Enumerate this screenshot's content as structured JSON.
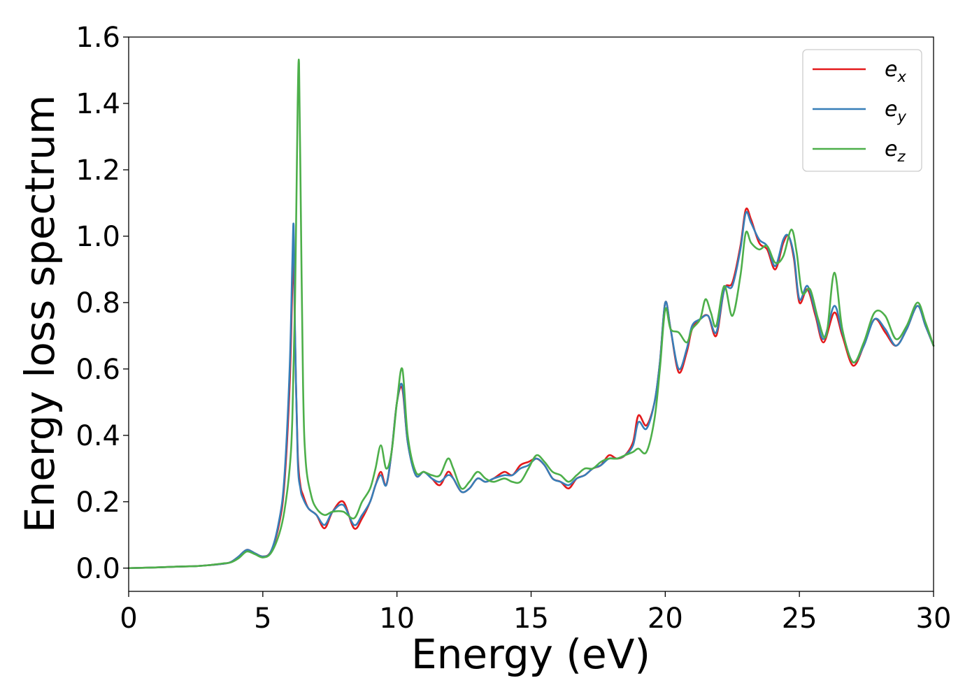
{
  "chart_data": {
    "type": "line",
    "xlabel": "Energy (eV)",
    "ylabel": "Energy loss spectrum",
    "xlim": [
      0,
      30
    ],
    "ylim": [
      -0.07,
      1.6
    ],
    "xticks": [
      0,
      5,
      10,
      15,
      20,
      25,
      30
    ],
    "yticks": [
      0.0,
      0.2,
      0.4,
      0.6,
      0.8,
      1.0,
      1.2,
      1.4,
      1.6
    ],
    "xtick_labels": [
      "0",
      "5",
      "10",
      "15",
      "20",
      "25",
      "30"
    ],
    "ytick_labels": [
      "0.0",
      "0.2",
      "0.4",
      "0.6",
      "0.8",
      "1.0",
      "1.2",
      "1.4",
      "1.6"
    ],
    "grid": false,
    "legend_position": "top-right",
    "series": [
      {
        "name": "e_x",
        "legend_base": "e",
        "legend_sub": "x",
        "color": "#e41a1c",
        "x": [
          0,
          1,
          2,
          2.5,
          3,
          3.5,
          3.8,
          4.1,
          4.4,
          4.7,
          5.0,
          5.3,
          5.6,
          5.8,
          6.0,
          6.1,
          6.15,
          6.2,
          6.3,
          6.4,
          6.5,
          6.7,
          7.0,
          7.3,
          7.6,
          8.0,
          8.4,
          8.7,
          9.0,
          9.2,
          9.4,
          9.6,
          9.8,
          10.0,
          10.2,
          10.4,
          10.7,
          11.0,
          11.3,
          11.6,
          11.9,
          12.1,
          12.4,
          12.7,
          13.0,
          13.3,
          13.6,
          14.0,
          14.3,
          14.6,
          14.9,
          15.2,
          15.5,
          15.8,
          16.1,
          16.4,
          16.7,
          17.0,
          17.3,
          17.6,
          17.9,
          18.2,
          18.5,
          18.8,
          19.0,
          19.3,
          19.6,
          19.8,
          20.0,
          20.2,
          20.5,
          20.8,
          21.0,
          21.3,
          21.6,
          21.9,
          22.2,
          22.5,
          22.8,
          23.0,
          23.2,
          23.5,
          23.8,
          24.1,
          24.4,
          24.6,
          24.8,
          25.0,
          25.3,
          25.6,
          25.9,
          26.3,
          26.6,
          27.0,
          27.4,
          27.8,
          28.2,
          28.6,
          29.0,
          29.4,
          29.7,
          30.0
        ],
        "y": [
          0.0,
          0.002,
          0.005,
          0.006,
          0.009,
          0.013,
          0.018,
          0.035,
          0.055,
          0.045,
          0.035,
          0.05,
          0.13,
          0.25,
          0.55,
          0.85,
          0.95,
          0.7,
          0.35,
          0.25,
          0.22,
          0.18,
          0.16,
          0.12,
          0.17,
          0.2,
          0.12,
          0.15,
          0.2,
          0.25,
          0.29,
          0.25,
          0.35,
          0.5,
          0.54,
          0.38,
          0.28,
          0.29,
          0.27,
          0.25,
          0.29,
          0.27,
          0.23,
          0.24,
          0.27,
          0.26,
          0.27,
          0.29,
          0.28,
          0.31,
          0.32,
          0.33,
          0.31,
          0.27,
          0.26,
          0.24,
          0.27,
          0.28,
          0.3,
          0.31,
          0.34,
          0.33,
          0.34,
          0.38,
          0.46,
          0.43,
          0.5,
          0.62,
          0.8,
          0.72,
          0.59,
          0.65,
          0.72,
          0.75,
          0.76,
          0.7,
          0.84,
          0.86,
          0.97,
          1.08,
          1.05,
          0.98,
          0.96,
          0.9,
          0.98,
          1.0,
          0.93,
          0.8,
          0.84,
          0.76,
          0.68,
          0.77,
          0.7,
          0.61,
          0.67,
          0.75,
          0.71,
          0.67,
          0.72,
          0.79,
          0.73,
          0.67
        ]
      },
      {
        "name": "e_y",
        "legend_base": "e",
        "legend_sub": "y",
        "color": "#377eb8",
        "x": [
          0,
          1,
          2,
          2.5,
          3,
          3.5,
          3.8,
          4.1,
          4.4,
          4.7,
          5.0,
          5.3,
          5.6,
          5.8,
          6.0,
          6.1,
          6.15,
          6.2,
          6.3,
          6.4,
          6.5,
          6.7,
          7.0,
          7.3,
          7.6,
          8.0,
          8.4,
          8.7,
          9.0,
          9.2,
          9.4,
          9.6,
          9.8,
          10.0,
          10.2,
          10.4,
          10.7,
          11.0,
          11.3,
          11.6,
          11.9,
          12.1,
          12.4,
          12.7,
          13.0,
          13.3,
          13.6,
          14.0,
          14.3,
          14.6,
          14.9,
          15.2,
          15.5,
          15.8,
          16.1,
          16.4,
          16.7,
          17.0,
          17.3,
          17.6,
          17.9,
          18.2,
          18.5,
          18.8,
          19.0,
          19.3,
          19.6,
          19.8,
          20.0,
          20.2,
          20.5,
          20.8,
          21.0,
          21.3,
          21.6,
          21.9,
          22.2,
          22.5,
          22.8,
          23.0,
          23.2,
          23.5,
          23.8,
          24.1,
          24.4,
          24.6,
          24.8,
          25.0,
          25.3,
          25.6,
          25.9,
          26.3,
          26.6,
          27.0,
          27.4,
          27.8,
          28.2,
          28.6,
          29.0,
          29.4,
          29.7,
          30.0
        ],
        "y": [
          0.0,
          0.002,
          0.005,
          0.006,
          0.009,
          0.013,
          0.018,
          0.035,
          0.055,
          0.045,
          0.035,
          0.05,
          0.14,
          0.27,
          0.6,
          0.92,
          1.03,
          0.72,
          0.33,
          0.24,
          0.21,
          0.18,
          0.16,
          0.13,
          0.17,
          0.19,
          0.13,
          0.16,
          0.2,
          0.25,
          0.28,
          0.25,
          0.35,
          0.5,
          0.55,
          0.38,
          0.28,
          0.29,
          0.27,
          0.26,
          0.28,
          0.27,
          0.23,
          0.24,
          0.27,
          0.26,
          0.27,
          0.28,
          0.28,
          0.3,
          0.31,
          0.33,
          0.31,
          0.27,
          0.26,
          0.25,
          0.27,
          0.28,
          0.3,
          0.31,
          0.33,
          0.33,
          0.34,
          0.37,
          0.44,
          0.42,
          0.5,
          0.62,
          0.8,
          0.72,
          0.6,
          0.66,
          0.73,
          0.75,
          0.76,
          0.71,
          0.84,
          0.85,
          0.96,
          1.07,
          1.04,
          0.99,
          0.97,
          0.91,
          0.99,
          1.0,
          0.94,
          0.81,
          0.85,
          0.77,
          0.69,
          0.79,
          0.71,
          0.62,
          0.67,
          0.75,
          0.72,
          0.67,
          0.72,
          0.79,
          0.73,
          0.67
        ]
      },
      {
        "name": "e_z",
        "legend_base": "e",
        "legend_sub": "z",
        "color": "#4daf4a",
        "x": [
          0,
          1,
          2,
          2.5,
          3,
          3.5,
          3.8,
          4.1,
          4.4,
          4.7,
          5.0,
          5.3,
          5.6,
          5.8,
          6.0,
          6.1,
          6.2,
          6.3,
          6.35,
          6.4,
          6.5,
          6.6,
          6.8,
          7.0,
          7.3,
          7.6,
          8.0,
          8.4,
          8.7,
          9.0,
          9.2,
          9.4,
          9.6,
          9.8,
          10.0,
          10.2,
          10.4,
          10.7,
          11.0,
          11.3,
          11.6,
          11.9,
          12.1,
          12.4,
          12.7,
          13.0,
          13.3,
          13.6,
          14.0,
          14.3,
          14.6,
          14.9,
          15.2,
          15.5,
          15.8,
          16.1,
          16.4,
          16.7,
          17.0,
          17.3,
          17.6,
          17.9,
          18.2,
          18.5,
          18.8,
          19.0,
          19.3,
          19.6,
          19.8,
          20.0,
          20.2,
          20.5,
          20.8,
          21.0,
          21.3,
          21.5,
          21.7,
          21.9,
          22.2,
          22.5,
          22.8,
          23.0,
          23.2,
          23.5,
          23.8,
          24.1,
          24.4,
          24.7,
          24.9,
          25.1,
          25.4,
          25.7,
          26.0,
          26.3,
          26.6,
          27.0,
          27.4,
          27.8,
          28.2,
          28.6,
          29.0,
          29.4,
          29.7,
          30.0
        ],
        "y": [
          0.0,
          0.002,
          0.005,
          0.006,
          0.009,
          0.014,
          0.017,
          0.03,
          0.05,
          0.042,
          0.032,
          0.045,
          0.1,
          0.17,
          0.3,
          0.45,
          0.8,
          1.4,
          1.52,
          1.2,
          0.55,
          0.32,
          0.22,
          0.18,
          0.16,
          0.17,
          0.17,
          0.15,
          0.2,
          0.24,
          0.3,
          0.37,
          0.3,
          0.35,
          0.5,
          0.6,
          0.4,
          0.29,
          0.29,
          0.28,
          0.28,
          0.33,
          0.3,
          0.24,
          0.26,
          0.29,
          0.27,
          0.26,
          0.27,
          0.26,
          0.26,
          0.3,
          0.34,
          0.32,
          0.29,
          0.28,
          0.26,
          0.28,
          0.3,
          0.3,
          0.32,
          0.33,
          0.33,
          0.34,
          0.35,
          0.36,
          0.35,
          0.45,
          0.6,
          0.78,
          0.72,
          0.71,
          0.68,
          0.72,
          0.75,
          0.81,
          0.77,
          0.73,
          0.85,
          0.76,
          0.88,
          1.01,
          0.98,
          0.96,
          0.97,
          0.92,
          0.94,
          1.02,
          0.95,
          0.83,
          0.84,
          0.75,
          0.7,
          0.89,
          0.72,
          0.62,
          0.68,
          0.77,
          0.76,
          0.69,
          0.73,
          0.8,
          0.74,
          0.67
        ]
      }
    ]
  }
}
